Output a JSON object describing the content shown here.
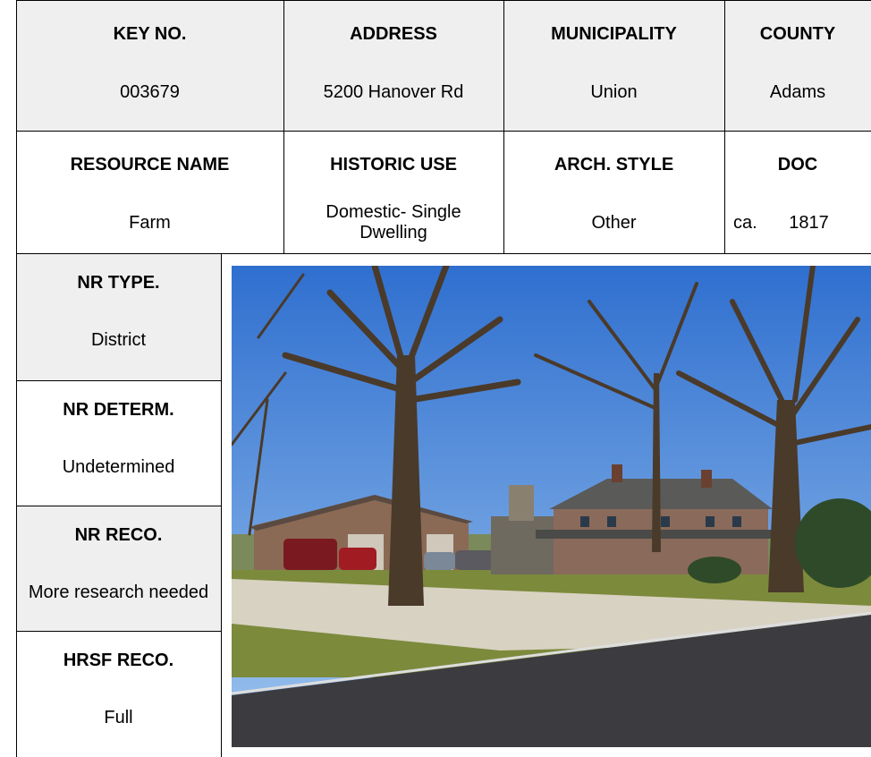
{
  "row_1": {
    "labels": [
      "KEY NO.",
      "ADDRESS",
      "MUNICIPALITY",
      "COUNTY"
    ],
    "values": [
      "003679",
      "5200 Hanover Rd",
      "Union",
      "Adams"
    ]
  },
  "row_2": {
    "labels": [
      "RESOURCE NAME",
      "HISTORIC USE",
      "ARCH. STYLE",
      "DOC"
    ],
    "values": [
      "Farm",
      "Domestic- Single Dwelling",
      "Other",
      "ca. 1817"
    ]
  },
  "sidebar": [
    {
      "label": "NR TYPE.",
      "value": "District"
    },
    {
      "label": "NR DETERM.",
      "value": "Undetermined"
    },
    {
      "label": "NR RECO.",
      "value": "More research needed"
    },
    {
      "label": "HRSF RECO.",
      "value": "Full"
    }
  ]
}
